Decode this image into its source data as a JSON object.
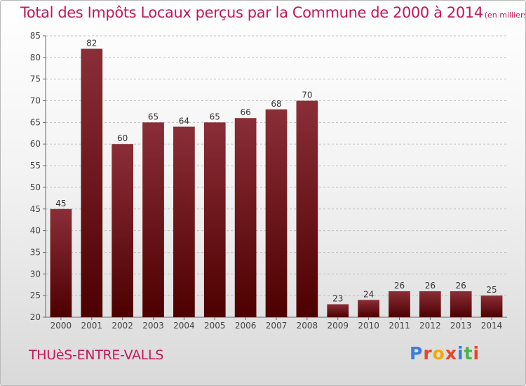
{
  "title": "Total des Impôts Locaux perçus par la Commune de 2000 à 2014",
  "unit": "(en milliers d'€)",
  "commune": "THUèS-ENTRE-VALLS",
  "brand": "Proxiti",
  "colors": {
    "title": "#c2185b",
    "bar_top": "#8a2e37",
    "bar_bottom": "#4d0000",
    "grid": "#bfbfbf",
    "brand_letters": [
      "#3b7dd8",
      "#e8462a",
      "#f2a900",
      "#e8462a",
      "#3b7dd8",
      "#45b649",
      "#e8462a"
    ]
  },
  "chart_data": {
    "type": "bar",
    "categories": [
      "2000",
      "2001",
      "2002",
      "2003",
      "2004",
      "2005",
      "2006",
      "2007",
      "2008",
      "2009",
      "2010",
      "2011",
      "2012",
      "2013",
      "2014"
    ],
    "values": [
      45,
      82,
      60,
      65,
      64,
      65,
      66,
      68,
      70,
      23,
      24,
      26,
      26,
      26,
      25
    ],
    "ylim": [
      20,
      85
    ],
    "yticks": [
      20,
      25,
      30,
      35,
      40,
      45,
      50,
      55,
      60,
      65,
      70,
      75,
      80,
      85
    ],
    "grid": true,
    "xlabel": "",
    "ylabel": ""
  }
}
